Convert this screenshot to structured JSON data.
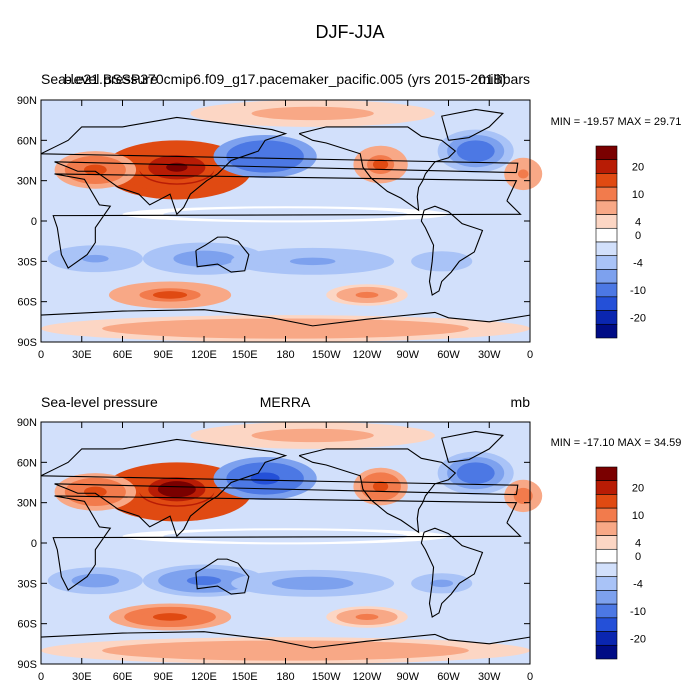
{
  "figure": {
    "title": "DJF-JJA"
  },
  "panels": [
    {
      "id": "top",
      "left_label": "Sea-level pressure",
      "center_label": "b.e21.BSSP370cmip6.f09_g17.pacemaker_pacific.005 (yrs 2015-2018)",
      "right_label": "millibars",
      "minmax_text": "MIN = -19.57 MAX =  29.71",
      "min": -19.57,
      "max": 29.71
    },
    {
      "id": "bottom",
      "left_label": "Sea-level pressure",
      "center_label": "MERRA",
      "right_label": "mb",
      "minmax_text": "MIN = -17.10 MAX =  34.59",
      "min": -17.1,
      "max": 34.59
    }
  ],
  "axes": {
    "lat_ticks": [
      "90N",
      "60N",
      "30N",
      "0",
      "30S",
      "60S",
      "90S"
    ],
    "lon_ticks": [
      "0",
      "30E",
      "60E",
      "90E",
      "120E",
      "150E",
      "180",
      "150W",
      "120W",
      "90W",
      "60W",
      "30W",
      "0"
    ]
  },
  "colorbar": {
    "labels": [
      "20",
      "10",
      "4",
      "0",
      "-4",
      "-10",
      "-20"
    ],
    "colors": [
      "#7a0000",
      "#b81c05",
      "#e04a12",
      "#f27b4c",
      "#f8a886",
      "#fcd6c4",
      "#ffffff",
      "#d2e0fb",
      "#a9c3f7",
      "#7da1ee",
      "#4c78e4",
      "#2450d8",
      "#0a26b0",
      "#000c85"
    ]
  },
  "map_blobs": [
    {
      "lon": 100,
      "lat": 38,
      "rx": 55,
      "ry": 22,
      "v": 24
    },
    {
      "lon": 100,
      "lat": 40,
      "rx": 28,
      "ry": 12,
      "v": 30
    },
    {
      "lon": 40,
      "lat": 38,
      "rx": 30,
      "ry": 14,
      "v": 9
    },
    {
      "lon": 165,
      "lat": 48,
      "rx": 38,
      "ry": 16,
      "v": -16
    },
    {
      "lon": 250,
      "lat": 42,
      "rx": 20,
      "ry": 14,
      "v": 8
    },
    {
      "lon": 320,
      "lat": 52,
      "rx": 28,
      "ry": 16,
      "v": -12
    },
    {
      "lon": 355,
      "lat": 35,
      "rx": 14,
      "ry": 12,
      "v": 6
    },
    {
      "lon": 120,
      "lat": -28,
      "rx": 45,
      "ry": 12,
      "v": -8
    },
    {
      "lon": 40,
      "lat": -28,
      "rx": 35,
      "ry": 10,
      "v": -6
    },
    {
      "lon": 200,
      "lat": -30,
      "rx": 60,
      "ry": 10,
      "v": -6
    },
    {
      "lon": 295,
      "lat": -30,
      "rx": 30,
      "ry": 10,
      "v": -5
    },
    {
      "lon": 95,
      "lat": -55,
      "rx": 45,
      "ry": 10,
      "v": 8
    },
    {
      "lon": 240,
      "lat": -55,
      "rx": 30,
      "ry": 8,
      "v": 5
    },
    {
      "lon": 180,
      "lat": 5,
      "rx": 120,
      "ry": 6,
      "v": -1
    },
    {
      "lon": 180,
      "lat": -80,
      "rx": 180,
      "ry": 10,
      "v": 4
    },
    {
      "lon": 200,
      "lat": 80,
      "rx": 90,
      "ry": 10,
      "v": 3
    }
  ]
}
